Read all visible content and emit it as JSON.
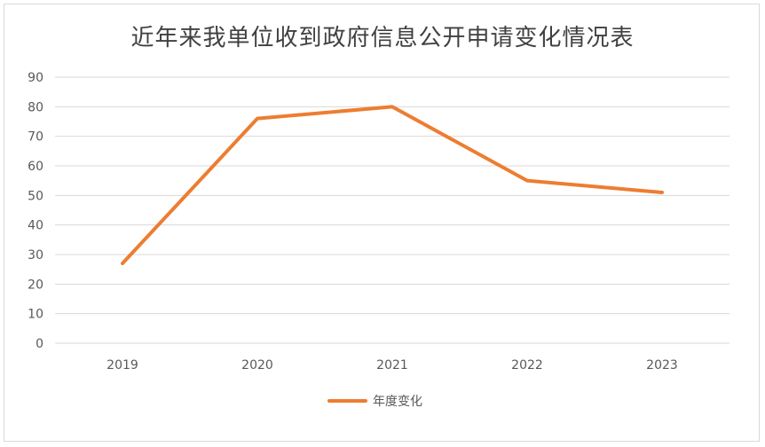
{
  "chart_data": {
    "type": "line",
    "title": "近年来我单位收到政府信息公开申请变化情况表",
    "xlabel": "",
    "ylabel": "",
    "categories": [
      "2019",
      "2020",
      "2021",
      "2022",
      "2023"
    ],
    "series": [
      {
        "name": "年度变化",
        "values": [
          27,
          76,
          80,
          55,
          51
        ],
        "color": "#ed7d31"
      }
    ],
    "ylim": [
      0,
      90
    ],
    "yticks": [
      0,
      10,
      20,
      30,
      40,
      50,
      60,
      70,
      80,
      90
    ],
    "grid": true,
    "legend_position": "bottom"
  }
}
